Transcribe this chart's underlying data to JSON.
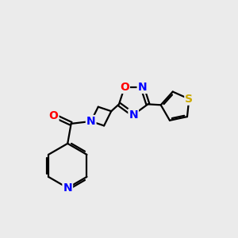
{
  "bg_color": "#ebebeb",
  "bond_color": "#000000",
  "bond_width": 1.6,
  "atom_colors": {
    "N": "#0000FF",
    "O": "#FF0000",
    "S": "#CCAA00",
    "C": "#000000"
  },
  "font_size_atom": 10,
  "figsize": [
    3.0,
    3.0
  ],
  "dpi": 100
}
